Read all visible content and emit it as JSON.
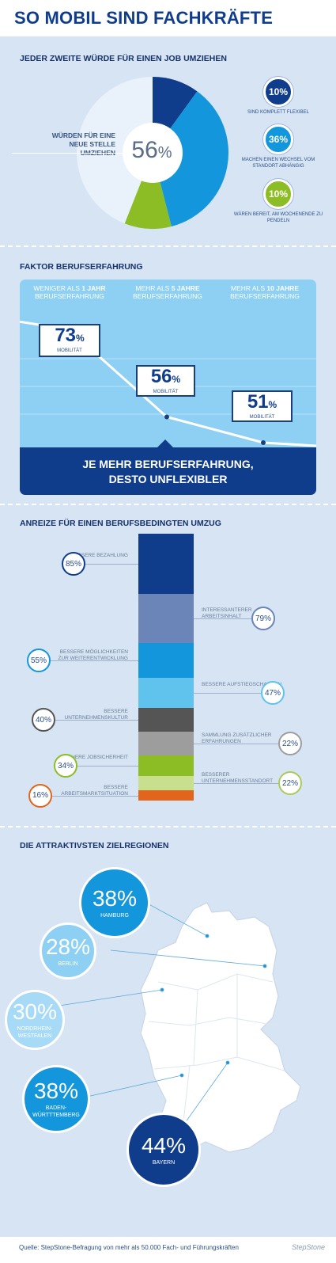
{
  "title": "SO MOBIL SIND FACHKRÄFTE",
  "section1": {
    "heading": "JEDER ZWEITE WÜRDE FÜR EINEN JOB UMZIEHEN",
    "center_value": "56",
    "pct": "%",
    "label": "WÜRDEN FÜR EINE NEUE STELLE UMZIEHEN",
    "badges": [
      {
        "value": "10%",
        "caption": "SIND KOMPLETT FLEXIBEL",
        "color": "#0f3d8c"
      },
      {
        "value": "36%",
        "caption": "MACHEN EINEN WECHSEL VOM STANDORT ABHÄNGIG",
        "color": "#1396dc"
      },
      {
        "value": "10%",
        "caption": "WÄREN BEREIT, AM WOCHENENDE ZU PENDELN",
        "color": "#8cbd24"
      }
    ]
  },
  "section2": {
    "heading": "FAKTOR BERUFSERFAHRUNG",
    "columns": [
      {
        "line1_a": "WENIGER ALS ",
        "line1_b": "1 JAHR",
        "line2": "BERUFSERFAHRUNG"
      },
      {
        "line1_a": "MEHR ALS ",
        "line1_b": "5 JAHRE",
        "line2": "BERUFSERFAHRUNG"
      },
      {
        "line1_a": "MEHR ALS ",
        "line1_b": "10 JAHRE",
        "line2": "BERUFSERFAHRUNG"
      }
    ],
    "mobility_label": "MOBILITÄT",
    "conclusion_1": "JE MEHR BERUFSERFAHRUNG,",
    "conclusion_2": "DESTO UNFLEXIBLER"
  },
  "section3": {
    "heading": "ANREIZE FÜR EINEN BERUFSBEDINGTEN UMZUG"
  },
  "section4": {
    "heading": "DIE ATTRAKTIVSTEN ZIELREGIONEN"
  },
  "chart_data": [
    {
      "type": "pie",
      "title": "JEDER ZWEITE WÜRDE FÜR EINEN JOB UMZIEHEN",
      "categories": [
        "SIND KOMPLETT FLEXIBEL",
        "MACHEN EINEN WECHSEL VOM STANDORT ABHÄNGIG",
        "WÄREN BEREIT, AM WOCHENENDE ZU PENDELN",
        "Rest"
      ],
      "values": [
        10,
        36,
        10,
        44
      ],
      "colors": [
        "#0f3d8c",
        "#1396dc",
        "#8cbd24",
        "#e9f1fa"
      ]
    },
    {
      "type": "line",
      "title": "FAKTOR BERUFSERFAHRUNG",
      "categories": [
        "WENIGER ALS 1 JAHR BERUFSERFAHRUNG",
        "MEHR ALS 5 JAHRE BERUFSERFAHRUNG",
        "MEHR ALS 10 JAHRE BERUFSERFAHRUNG"
      ],
      "values": [
        73,
        56,
        51
      ],
      "unit": "%"
    },
    {
      "type": "bar",
      "title": "ANREIZE FÜR EINEN BERUFSBEDINGTEN UMZUG",
      "items": [
        {
          "label": "BESSERE BEZAHLUNG",
          "value": 85,
          "side": "left",
          "color": "#0f3d8c",
          "ring": "#0f3d8c"
        },
        {
          "label": "INTERESSANTERER ARBEITSINHALT",
          "value": 79,
          "side": "right",
          "color": "#6b85b8",
          "ring": "#6b85b8"
        },
        {
          "label": "BESSERE MÖGLICHKEITEN ZUR WEITERENTWICKLUNG",
          "value": 55,
          "side": "left",
          "color": "#1396dc",
          "ring": "#1396dc"
        },
        {
          "label": "BESSERE AUFSTIEGSCHANCEN",
          "value": 47,
          "side": "right",
          "color": "#5fc3ee",
          "ring": "#5fc3ee"
        },
        {
          "label": "BESSERE UNTERNEHMENSKULTUR",
          "value": 40,
          "side": "left",
          "color": "#555555",
          "ring": "#555555"
        },
        {
          "label": "SAMMLUNG ZUSÄTZLICHER ERFAHRUNGEN",
          "value": 22,
          "side": "right",
          "color": "#9d9d9d",
          "ring": "#9d9d9d"
        },
        {
          "label": "HÖHERE JOBSICHERHEIT",
          "value": 34,
          "side": "left",
          "color": "#8cbd24",
          "ring": "#8cbd24"
        },
        {
          "label": "BESSERER UNTERNEHMENSSTANDORT",
          "value": 22,
          "side": "right",
          "color": "#c8e08e",
          "ring": "#a8cc5a"
        },
        {
          "label": "BESSERE ARBEITSMARKTSITUATION",
          "value": 16,
          "side": "left",
          "color": "#e2651d",
          "ring": "#e2651d"
        }
      ],
      "unit": "%"
    },
    {
      "type": "bar",
      "title": "DIE ATTRAKTIVSTEN ZIELREGIONEN",
      "items": [
        {
          "label": "HAMBURG",
          "value": 38,
          "color": "#1396dc"
        },
        {
          "label": "BERLIN",
          "value": 28,
          "color": "#8ed0f3"
        },
        {
          "label": "NORDRHEIN-WESTFALEN",
          "value": 30,
          "color": "#a6daf6"
        },
        {
          "label": "BADEN-WÜRTTTEMBERG",
          "value": 38,
          "color": "#1396dc"
        },
        {
          "label": "BAYERN",
          "value": 44,
          "color": "#0f3d8c"
        }
      ],
      "unit": "%"
    }
  ],
  "footer": {
    "source": "Quelle: StepStone-Befragung von mehr als 50.000 Fach- und Führungskräften",
    "logo": "StepStone"
  }
}
